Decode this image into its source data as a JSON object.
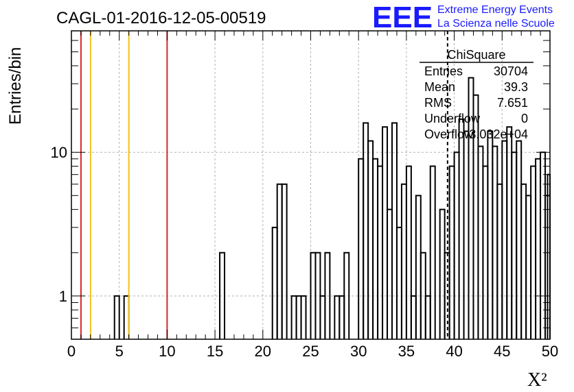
{
  "chart_data": {
    "type": "histogram",
    "title": "CAGL-01-2016-12-05-00519",
    "xlabel": "X²",
    "ylabel": "Entries/bin",
    "xlim": [
      0,
      50
    ],
    "ylim": [
      0.5,
      70
    ],
    "yscale": "log",
    "grid": true,
    "bin_width": 0.5,
    "x_ticks": [
      "0",
      "5",
      "10",
      "15",
      "20",
      "25",
      "30",
      "35",
      "40",
      "45",
      "50"
    ],
    "y_ticks": [
      "1",
      "10"
    ],
    "bins": [
      [
        4.5,
        1
      ],
      [
        5.5,
        1
      ],
      [
        15.5,
        2
      ],
      [
        21.0,
        3
      ],
      [
        21.5,
        6
      ],
      [
        22.0,
        6
      ],
      [
        23.0,
        1
      ],
      [
        23.5,
        1
      ],
      [
        24.0,
        1
      ],
      [
        25.0,
        2
      ],
      [
        25.5,
        2
      ],
      [
        26.0,
        1
      ],
      [
        26.5,
        2
      ],
      [
        27.5,
        1
      ],
      [
        28.0,
        1
      ],
      [
        28.5,
        2
      ],
      [
        30.0,
        9
      ],
      [
        30.5,
        16
      ],
      [
        31.0,
        12
      ],
      [
        31.5,
        9
      ],
      [
        32.0,
        8
      ],
      [
        32.5,
        15
      ],
      [
        33.0,
        4
      ],
      [
        33.5,
        16
      ],
      [
        34.0,
        3
      ],
      [
        34.5,
        6
      ],
      [
        35.0,
        8
      ],
      [
        35.5,
        1
      ],
      [
        36.0,
        5
      ],
      [
        36.5,
        2
      ],
      [
        37.0,
        1
      ],
      [
        37.5,
        8
      ],
      [
        38.5,
        4
      ],
      [
        39.0,
        2
      ],
      [
        39.5,
        8
      ],
      [
        40.0,
        10
      ],
      [
        40.5,
        17
      ],
      [
        41.0,
        14
      ],
      [
        41.5,
        33
      ],
      [
        42.0,
        25
      ],
      [
        42.5,
        11
      ],
      [
        43.0,
        8
      ],
      [
        43.5,
        14
      ],
      [
        44.0,
        11
      ],
      [
        44.5,
        6
      ],
      [
        45.0,
        12
      ],
      [
        45.5,
        15
      ],
      [
        46.0,
        10
      ],
      [
        46.5,
        12
      ],
      [
        47.0,
        6
      ],
      [
        47.5,
        5
      ],
      [
        48.0,
        8
      ],
      [
        48.5,
        9
      ],
      [
        49.0,
        10
      ],
      [
        49.5,
        5
      ],
      [
        49.75,
        7
      ]
    ],
    "vertical_lines": [
      {
        "x": 1,
        "color": "#d62728",
        "style": "solid"
      },
      {
        "x": 2,
        "color": "#f2c21a",
        "style": "solid"
      },
      {
        "x": 6,
        "color": "#f2c21a",
        "style": "solid"
      },
      {
        "x": 10,
        "color": "#d62728",
        "style": "solid"
      },
      {
        "x": 39.3,
        "color": "#000000",
        "style": "dashed"
      }
    ],
    "stats_box": {
      "name": "ChiSquare",
      "rows": [
        {
          "label": "Entries",
          "value": "30704"
        },
        {
          "label": "Mean",
          "value": "39.3"
        },
        {
          "label": "RMS",
          "value": "7.651"
        },
        {
          "label": "Underflow",
          "value": "0"
        },
        {
          "label": "Overflow",
          "value": "3.032e+04"
        }
      ]
    }
  },
  "logo": {
    "letters": "EEE",
    "line1": "Extreme Energy Events",
    "line2": "La Scienza nelle Scuole"
  }
}
